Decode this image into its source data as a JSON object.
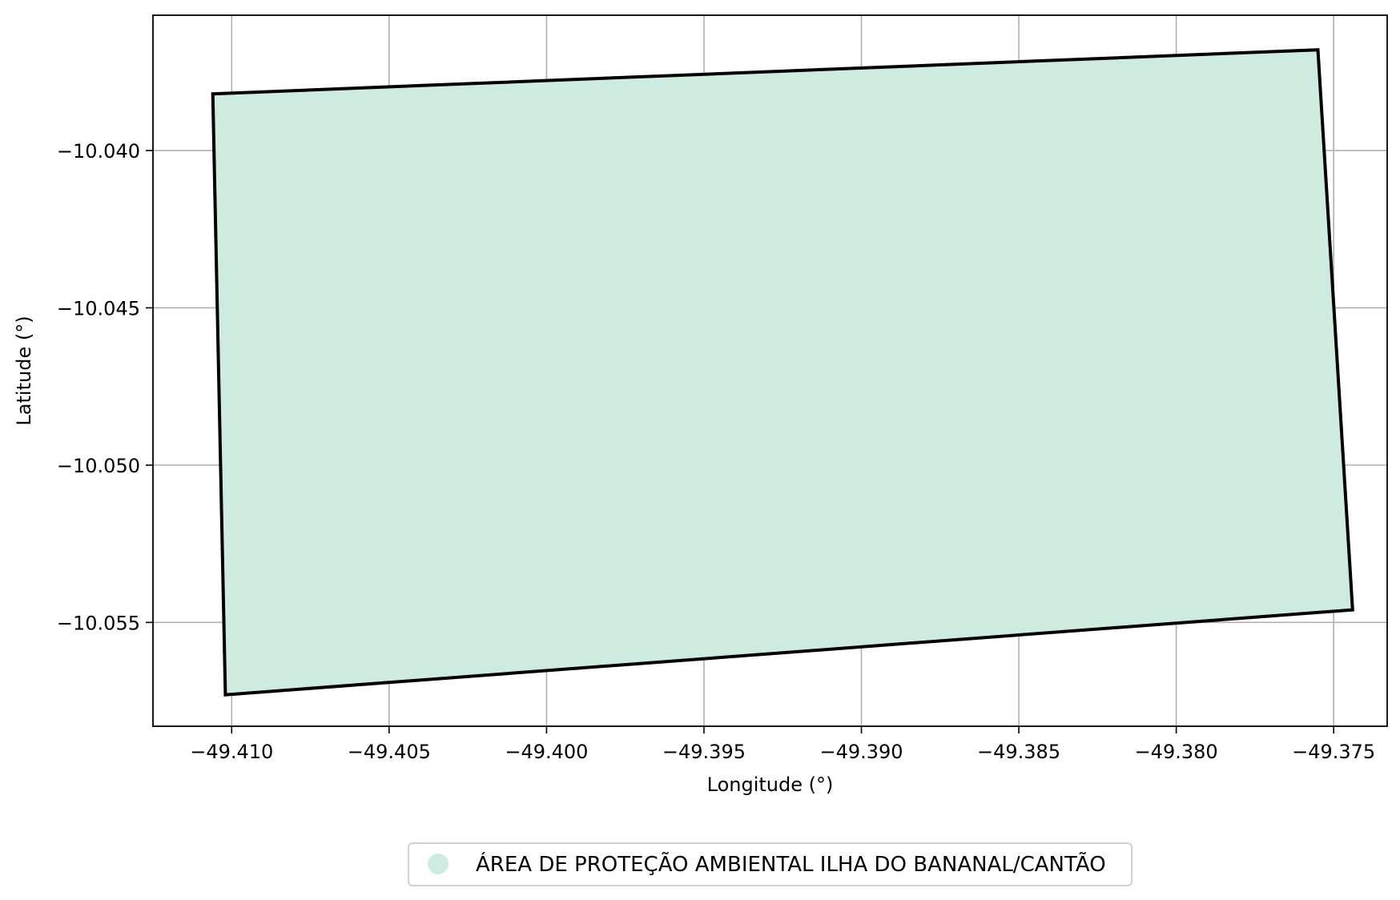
{
  "chart_data": {
    "type": "map",
    "xlabel": "Longitude (°)",
    "ylabel": "Latitude (°)",
    "xlim": [
      -49.4125,
      -49.3733
    ],
    "ylim": [
      -10.0583,
      -10.0357
    ],
    "grid": true,
    "x_ticks": [
      {
        "value": -49.41,
        "label": "−49.410"
      },
      {
        "value": -49.405,
        "label": "−49.405"
      },
      {
        "value": -49.4,
        "label": "−49.400"
      },
      {
        "value": -49.395,
        "label": "−49.395"
      },
      {
        "value": -49.39,
        "label": "−49.390"
      },
      {
        "value": -49.385,
        "label": "−49.385"
      },
      {
        "value": -49.38,
        "label": "−49.380"
      },
      {
        "value": -49.375,
        "label": "−49.375"
      }
    ],
    "y_ticks": [
      {
        "value": -10.04,
        "label": "−10.040"
      },
      {
        "value": -10.045,
        "label": "−10.045"
      },
      {
        "value": -10.05,
        "label": "−10.050"
      },
      {
        "value": -10.055,
        "label": "−10.055"
      }
    ],
    "polygon": {
      "name": "ÁREA DE PROTEÇÃO AMBIENTAL ILHA DO BANANAL/CANTÃO",
      "fill": "#ceebdf",
      "edge": "#000000",
      "coordinates": [
        [
          -49.4106,
          -10.0382
        ],
        [
          -49.3755,
          -10.0368
        ],
        [
          -49.3744,
          -10.0546
        ],
        [
          -49.4102,
          -10.0573
        ],
        [
          -49.4106,
          -10.0382
        ]
      ]
    },
    "legend": {
      "position": "bottom-center",
      "entries": [
        {
          "label": "ÁREA DE PROTEÇÃO AMBIENTAL ILHA DO BANANAL/CANTÃO",
          "color": "#ceebdf"
        }
      ]
    }
  }
}
